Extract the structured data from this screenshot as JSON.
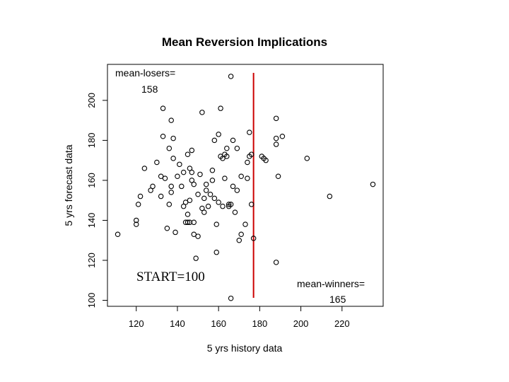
{
  "chart_data": {
    "type": "scatter",
    "title": "Mean Reversion Implications",
    "xlabel": "5 yrs history data",
    "ylabel": "5 yrs forecast data",
    "xlim": [
      106,
      240
    ],
    "ylim": [
      97,
      218
    ],
    "xticks": [
      120,
      140,
      160,
      180,
      200,
      220
    ],
    "yticks": [
      100,
      120,
      140,
      160,
      180,
      200
    ],
    "grid": false,
    "vline": {
      "x": 177,
      "color": "#cc0000"
    },
    "annotations": {
      "mean_losers_label": "mean-losers=",
      "mean_losers_value": "158",
      "mean_winners_label": "mean-winners=",
      "mean_winners_value": "165",
      "start_label": "START=100"
    },
    "points": [
      [
        111,
        133
      ],
      [
        120,
        138
      ],
      [
        120,
        140
      ],
      [
        121,
        148
      ],
      [
        122,
        152
      ],
      [
        124,
        166
      ],
      [
        127,
        155
      ],
      [
        128,
        157
      ],
      [
        130,
        169
      ],
      [
        132,
        162
      ],
      [
        132,
        152
      ],
      [
        133,
        196
      ],
      [
        133,
        182
      ],
      [
        134,
        161
      ],
      [
        135,
        136
      ],
      [
        136,
        176
      ],
      [
        136,
        148
      ],
      [
        137,
        190
      ],
      [
        137,
        157
      ],
      [
        137,
        154
      ],
      [
        138,
        181
      ],
      [
        138,
        171
      ],
      [
        139,
        134
      ],
      [
        140,
        162
      ],
      [
        141,
        168
      ],
      [
        142,
        157
      ],
      [
        143,
        164
      ],
      [
        143,
        147
      ],
      [
        144,
        139
      ],
      [
        144,
        149
      ],
      [
        145,
        173
      ],
      [
        145,
        143
      ],
      [
        145,
        139
      ],
      [
        146,
        166
      ],
      [
        146,
        150
      ],
      [
        146,
        139
      ],
      [
        147,
        160
      ],
      [
        147,
        164
      ],
      [
        147,
        175
      ],
      [
        148,
        158
      ],
      [
        148,
        133
      ],
      [
        148,
        139
      ],
      [
        149,
        121
      ],
      [
        150,
        153
      ],
      [
        150,
        132
      ],
      [
        151,
        163
      ],
      [
        152,
        194
      ],
      [
        152,
        146
      ],
      [
        153,
        151
      ],
      [
        153,
        144
      ],
      [
        154,
        158
      ],
      [
        154,
        155
      ],
      [
        155,
        147
      ],
      [
        156,
        153
      ],
      [
        157,
        165
      ],
      [
        157,
        160
      ],
      [
        158,
        180
      ],
      [
        158,
        151
      ],
      [
        159,
        124
      ],
      [
        159,
        138
      ],
      [
        160,
        183
      ],
      [
        160,
        149
      ],
      [
        161,
        196
      ],
      [
        161,
        172
      ],
      [
        162,
        171
      ],
      [
        162,
        147
      ],
      [
        163,
        173
      ],
      [
        163,
        161
      ],
      [
        164,
        176
      ],
      [
        164,
        172
      ],
      [
        165,
        148
      ],
      [
        165,
        147
      ],
      [
        166,
        101
      ],
      [
        166,
        148
      ],
      [
        166,
        212
      ],
      [
        167,
        180
      ],
      [
        167,
        157
      ],
      [
        168,
        144
      ],
      [
        169,
        155
      ],
      [
        169,
        176
      ],
      [
        170,
        130
      ],
      [
        171,
        133
      ],
      [
        171,
        162
      ],
      [
        173,
        138
      ],
      [
        174,
        169
      ],
      [
        174,
        161
      ],
      [
        175,
        184
      ],
      [
        175,
        172
      ],
      [
        176,
        148
      ],
      [
        176,
        173
      ],
      [
        177,
        131
      ],
      [
        181,
        172
      ],
      [
        182,
        171
      ],
      [
        183,
        170
      ],
      [
        188,
        119
      ],
      [
        188,
        191
      ],
      [
        188,
        181
      ],
      [
        188,
        178
      ],
      [
        189,
        162
      ],
      [
        191,
        182
      ],
      [
        203,
        171
      ],
      [
        214,
        152
      ],
      [
        235,
        158
      ]
    ]
  }
}
